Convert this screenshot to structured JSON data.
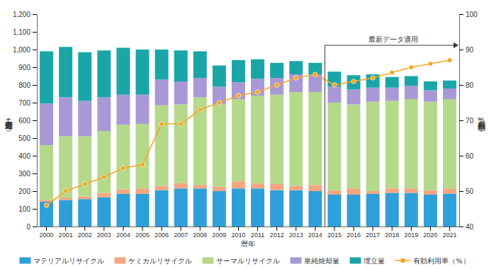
{
  "chart_data": {
    "type": "bar",
    "stacked": true,
    "x_label": "暦年",
    "y_label": "処理処分量（万t）",
    "y2_label": "有効利用率（%）",
    "categories": [
      "2000",
      "2001",
      "2002",
      "2003",
      "2004",
      "2005",
      "2006",
      "2007",
      "2008",
      "2009",
      "2010",
      "2011",
      "2012",
      "2013",
      "2014",
      "2015",
      "2016",
      "2017",
      "2018",
      "2019",
      "2020",
      "2021"
    ],
    "series": [
      {
        "name": "マテリアルリサイクル",
        "color": "#2e9fd8",
        "values": [
          140,
          150,
          155,
          165,
          185,
          185,
          205,
          215,
          215,
          200,
          215,
          215,
          205,
          205,
          200,
          180,
          180,
          185,
          190,
          190,
          180,
          185
        ]
      },
      {
        "name": "ケミカルリサイクル",
        "color": "#f4a582",
        "values": [
          10,
          10,
          15,
          25,
          25,
          30,
          25,
          30,
          20,
          25,
          40,
          30,
          35,
          25,
          35,
          25,
          35,
          15,
          25,
          25,
          25,
          30
        ]
      },
      {
        "name": "サーマルリサイクル",
        "color": "#b5d98a",
        "values": [
          310,
          350,
          340,
          350,
          365,
          365,
          455,
          445,
          495,
          465,
          465,
          495,
          505,
          530,
          525,
          495,
          475,
          505,
          495,
          505,
          500,
          505
        ]
      },
      {
        "name": "単純焼却量",
        "color": "#a899d6",
        "values": [
          235,
          220,
          200,
          190,
          170,
          165,
          145,
          130,
          110,
          100,
          95,
          95,
          95,
          100,
          100,
          90,
          85,
          80,
          75,
          75,
          65,
          60
        ]
      },
      {
        "name": "埋立量",
        "color": "#1aa6a6",
        "values": [
          295,
          285,
          275,
          265,
          265,
          255,
          170,
          175,
          150,
          120,
          125,
          110,
          85,
          75,
          65,
          85,
          80,
          75,
          60,
          55,
          50,
          45
        ]
      },
      {
        "name": "有効利用率（%）",
        "color": "#f5a623",
        "type": "line",
        "marker": "circle",
        "axis": "y2",
        "values": [
          46,
          50,
          52,
          54,
          56.5,
          57.5,
          69,
          69,
          73,
          75,
          77,
          78,
          80,
          82,
          83,
          80,
          81,
          82,
          83.5,
          85,
          86,
          87
        ]
      }
    ],
    "ylim": [
      0,
      1200
    ],
    "yticks": [
      0,
      100,
      200,
      300,
      400,
      500,
      600,
      700,
      800,
      900,
      {
        "value": 1000,
        "label": "1,000"
      },
      {
        "value": 1100,
        "label": "1,100"
      },
      {
        "value": 1200,
        "label": "1,200"
      }
    ],
    "y2lim": [
      40,
      100
    ],
    "y2ticks": [
      40,
      50,
      60,
      70,
      80,
      90,
      100
    ],
    "grid": false,
    "legend": "bottom",
    "annotations": [
      {
        "text": "最新データ適用",
        "x": "2015"
      }
    ]
  }
}
